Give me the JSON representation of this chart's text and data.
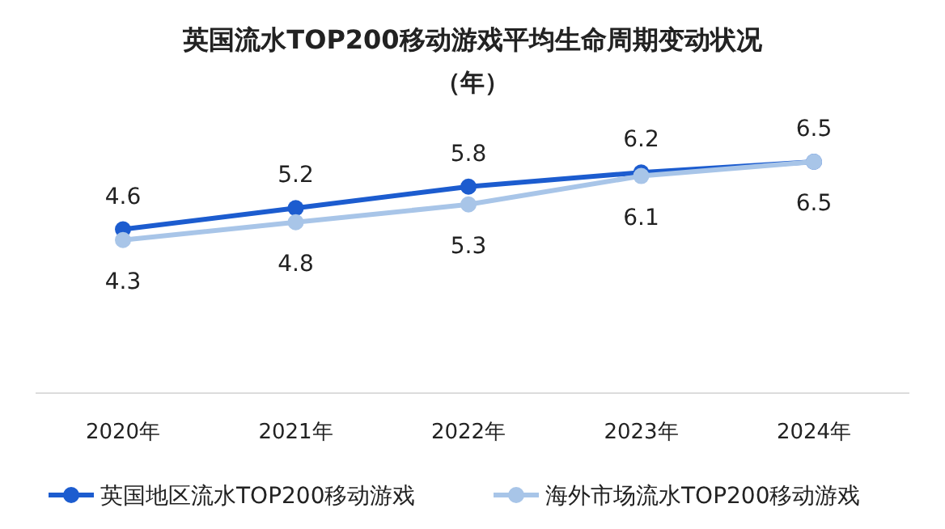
{
  "chart_data": {
    "type": "line",
    "title": "英国流水TOP200移动游戏平均生命周期变动状况",
    "subtitle": "（年）",
    "categories": [
      "2020年",
      "2021年",
      "2022年",
      "2023年",
      "2024年"
    ],
    "series": [
      {
        "name": "英国地区流水TOP200移动游戏",
        "color": "#1c5ccf",
        "values": [
          4.6,
          5.2,
          5.8,
          6.2,
          6.5
        ]
      },
      {
        "name": "海外市场流水TOP200移动游戏",
        "color": "#a8c5e8",
        "values": [
          4.3,
          4.8,
          5.3,
          6.1,
          6.5
        ]
      }
    ],
    "data_labels": true,
    "marker": "circle",
    "legend": "bottom"
  }
}
